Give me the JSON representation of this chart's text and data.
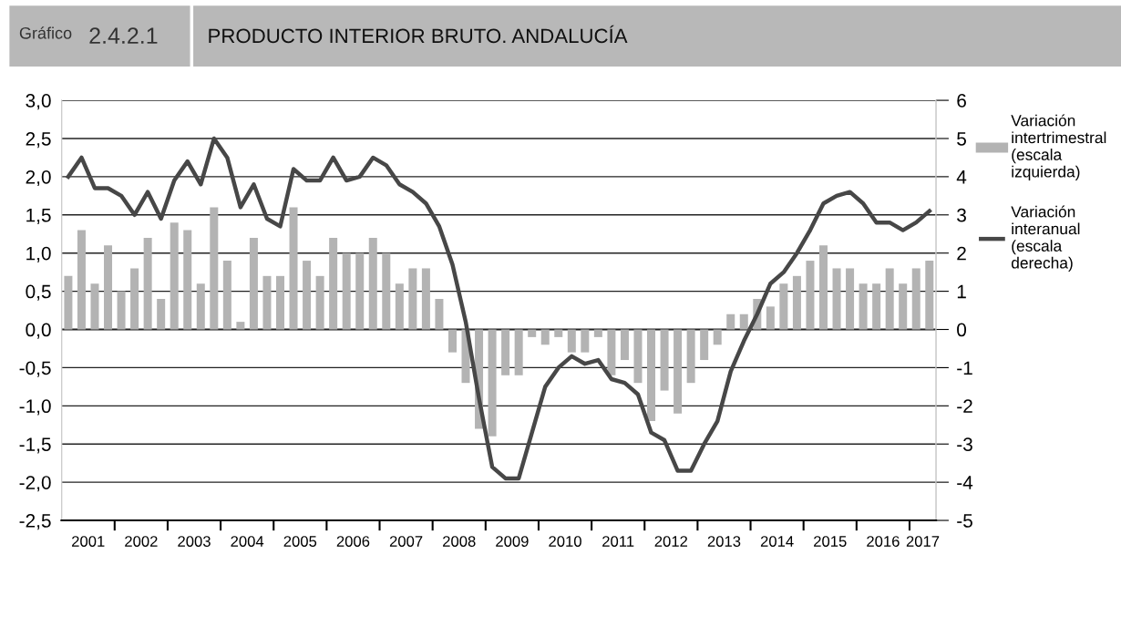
{
  "chart_data": {
    "type": "bar",
    "title": "PRODUCTO INTERIOR BRUTO. ANDALUCÍA",
    "annotations": [
      "Gráfico",
      "2.4.2.1"
    ],
    "x": [
      2001.125,
      2001.375,
      2001.625,
      2001.875,
      2002.125,
      2002.375,
      2002.625,
      2002.875,
      2003.125,
      2003.375,
      2003.625,
      2003.875,
      2004.125,
      2004.375,
      2004.625,
      2004.875,
      2005.125,
      2005.375,
      2005.625,
      2005.875,
      2006.125,
      2006.375,
      2006.625,
      2006.875,
      2007.125,
      2007.375,
      2007.625,
      2007.875,
      2008.125,
      2008.375,
      2008.625,
      2008.875,
      2009.125,
      2009.375,
      2009.625,
      2009.875,
      2010.125,
      2010.375,
      2010.625,
      2010.875,
      2011.125,
      2011.375,
      2011.625,
      2011.875,
      2012.125,
      2012.375,
      2012.625,
      2012.875,
      2013.125,
      2013.375,
      2013.625,
      2013.875,
      2014.125,
      2014.375,
      2014.625,
      2014.875,
      2015.125,
      2015.375,
      2015.625,
      2015.875,
      2016.125,
      2016.375,
      2016.625,
      2016.875,
      2017.125,
      2017.375
    ],
    "series": [
      {
        "name": "Variación intertrimestral (escala izquierda)",
        "color": "#b3b3b3",
        "values": [
          0.7,
          1.3,
          0.6,
          1.1,
          0.5,
          0.8,
          1.2,
          0.4,
          1.4,
          1.3,
          0.6,
          1.6,
          0.9,
          0.1,
          1.2,
          0.7,
          0.7,
          1.6,
          0.9,
          0.7,
          1.2,
          1.0,
          1.0,
          1.2,
          1.0,
          0.6,
          0.8,
          0.8,
          0.4,
          -0.3,
          -0.7,
          -1.3,
          -1.4,
          -0.6,
          -0.6,
          -0.1,
          -0.2,
          -0.1,
          -0.3,
          -0.3,
          -0.1,
          -0.6,
          -0.4,
          -0.7,
          -1.2,
          -0.8,
          -1.1,
          -0.7,
          -0.4,
          -0.2,
          0.2,
          0.2,
          0.4,
          0.3,
          0.6,
          0.7,
          0.9,
          1.1,
          0.8,
          0.8,
          0.6,
          0.6,
          0.8,
          0.6,
          0.8,
          0.9
        ]
      },
      {
        "name": "Variación interanual (escala derecha)",
        "type": "line",
        "axis": "y2",
        "color": "#474747",
        "values": [
          4.0,
          4.5,
          3.7,
          3.7,
          3.5,
          3.0,
          3.6,
          2.9,
          3.9,
          4.4,
          3.8,
          5.0,
          4.5,
          3.2,
          3.8,
          2.9,
          2.7,
          4.2,
          3.9,
          3.9,
          4.5,
          3.9,
          4.0,
          4.5,
          4.3,
          3.8,
          3.6,
          3.3,
          2.7,
          1.7,
          0.2,
          -1.8,
          -3.6,
          -3.9,
          -3.9,
          -2.7,
          -1.5,
          -1.0,
          -0.7,
          -0.9,
          -0.8,
          -1.3,
          -1.4,
          -1.7,
          -2.7,
          -2.9,
          -3.7,
          -3.7,
          -3.0,
          -2.4,
          -1.1,
          -0.3,
          0.4,
          1.2,
          1.5,
          2.0,
          2.6,
          3.3,
          3.5,
          3.6,
          3.3,
          2.8,
          2.8,
          2.6,
          2.8,
          3.1
        ]
      }
    ],
    "xlim": [
      2001,
      2017.5
    ],
    "xticks": [
      {
        "value": 2001.5,
        "label": "2001"
      },
      {
        "value": 2002,
        "label": null
      },
      {
        "value": 2002.5,
        "label": "2002"
      },
      {
        "value": 2003,
        "label": null
      },
      {
        "value": 2003.5,
        "label": "2003"
      },
      {
        "value": 2004,
        "label": null
      },
      {
        "value": 2004.5,
        "label": "2004"
      },
      {
        "value": 2005,
        "label": null
      },
      {
        "value": 2005.5,
        "label": "2005"
      },
      {
        "value": 2006,
        "label": null
      },
      {
        "value": 2006.5,
        "label": "2006"
      },
      {
        "value": 2007,
        "label": null
      },
      {
        "value": 2007.5,
        "label": "2007"
      },
      {
        "value": 2008,
        "label": null
      },
      {
        "value": 2008.5,
        "label": "2008"
      },
      {
        "value": 2009,
        "label": null
      },
      {
        "value": 2009.5,
        "label": "2009"
      },
      {
        "value": 2010,
        "label": null
      },
      {
        "value": 2010.5,
        "label": "2010"
      },
      {
        "value": 2011,
        "label": null
      },
      {
        "value": 2011.5,
        "label": "2011"
      },
      {
        "value": 2012,
        "label": null
      },
      {
        "value": 2012.5,
        "label": "2012"
      },
      {
        "value": 2013,
        "label": null
      },
      {
        "value": 2013.5,
        "label": "2013"
      },
      {
        "value": 2014,
        "label": null
      },
      {
        "value": 2014.5,
        "label": "2014"
      },
      {
        "value": 2015,
        "label": null
      },
      {
        "value": 2015.5,
        "label": "2015"
      },
      {
        "value": 2016,
        "label": null
      },
      {
        "value": 2016.5,
        "label": "2016"
      },
      {
        "value": 2017,
        "label": null
      },
      {
        "value": 2017.25,
        "label": "2017"
      }
    ],
    "ylim": [
      -2.5,
      3.0
    ],
    "yticks": [
      {
        "value": -2.5,
        "label": "-2,5"
      },
      {
        "value": -2.0,
        "label": "-2,0"
      },
      {
        "value": -1.5,
        "label": "-1,5"
      },
      {
        "value": -1.0,
        "label": "-1,0"
      },
      {
        "value": -0.5,
        "label": "-0,5"
      },
      {
        "value": 0,
        "label": "0,0"
      },
      {
        "value": 0.5,
        "label": "0,5"
      },
      {
        "value": 1.0,
        "label": "1,0"
      },
      {
        "value": 1.5,
        "label": "1,5"
      },
      {
        "value": 2.0,
        "label": "2,0"
      },
      {
        "value": 2.5,
        "label": "2,5"
      },
      {
        "value": 3.0,
        "label": "3,0"
      }
    ],
    "y2lim": [
      -5,
      6
    ],
    "y2ticks": [
      -5,
      -4,
      -3,
      -2,
      -1,
      0,
      1,
      2,
      3,
      4,
      5,
      6
    ],
    "grid": "y",
    "legend": "right"
  }
}
